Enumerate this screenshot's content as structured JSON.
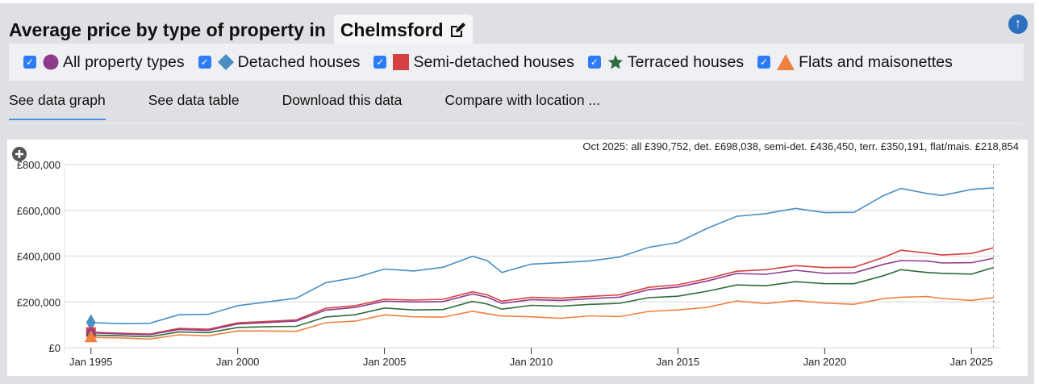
{
  "header": {
    "title": "Average price by type of property in",
    "location": "Chelmsford",
    "edit_icon": "edit-icon",
    "scroll_top_icon": "arrow-up-icon"
  },
  "legend": [
    {
      "label": "All property types",
      "marker": "circle",
      "color": "#8e3b8e"
    },
    {
      "label": "Detached houses",
      "marker": "diamond",
      "color": "#4a8fc4"
    },
    {
      "label": "Semi-detached houses",
      "marker": "square",
      "color": "#d64040"
    },
    {
      "label": "Terraced houses",
      "marker": "star",
      "color": "#2e6b3a"
    },
    {
      "label": "Flats and maisonettes",
      "marker": "triangle",
      "color": "#ef8040"
    }
  ],
  "tabs": [
    "See data graph",
    "See data table",
    "Download this data",
    "Compare with location ..."
  ],
  "chart_data": {
    "type": "line",
    "title": "",
    "annotation": "Oct 2025: all £390,752, det. £698,038, semi-det. £436,450, terr. £350,191, flat/mais. £218,854",
    "xlabel": "",
    "ylabel": "",
    "xlim": [
      1994.1,
      2025.9
    ],
    "ylim": [
      0,
      800000
    ],
    "xticks": [
      {
        "v": 1995,
        "label": "Jan 1995"
      },
      {
        "v": 2000,
        "label": "Jan 2000"
      },
      {
        "v": 2005,
        "label": "Jan 2005"
      },
      {
        "v": 2010,
        "label": "Jan 2010"
      },
      {
        "v": 2015,
        "label": "Jan 2015"
      },
      {
        "v": 2020,
        "label": "Jan 2020"
      },
      {
        "v": 2025,
        "label": "Jan 2025"
      }
    ],
    "yticks": [
      {
        "v": 0,
        "label": "£0"
      },
      {
        "v": 200000,
        "label": "£200,000"
      },
      {
        "v": 400000,
        "label": "£400,000"
      },
      {
        "v": 600000,
        "label": "£600,000"
      },
      {
        "v": 800000,
        "label": "£800,000"
      }
    ],
    "x": [
      1995,
      1996,
      1997,
      1998,
      1999,
      2000,
      2001,
      2002,
      2003,
      2004,
      2005,
      2006,
      2007,
      2008,
      2008.5,
      2009,
      2010,
      2011,
      2012,
      2013,
      2014,
      2015,
      2016,
      2017,
      2018,
      2019,
      2020,
      2021,
      2022,
      2022.6,
      2023.5,
      2024,
      2025,
      2025.75
    ],
    "series": [
      {
        "name": "Detached houses",
        "color": "#4a8fc4",
        "values": [
          110000,
          105000,
          115000,
          140000,
          150000,
          175000,
          200000,
          225000,
          280000,
          310000,
          335000,
          335000,
          360000,
          395000,
          385000,
          320000,
          365000,
          380000,
          375000,
          400000,
          430000,
          460000,
          530000,
          570000,
          590000,
          600000,
          590000,
          600000,
          660000,
          700000,
          665000,
          665000,
          700000,
          698038
        ]
      },
      {
        "name": "Semi-detached houses",
        "color": "#d64040",
        "values": [
          68000,
          63000,
          68000,
          80000,
          85000,
          100000,
          115000,
          130000,
          168000,
          188000,
          203000,
          208000,
          220000,
          240000,
          235000,
          195000,
          220000,
          225000,
          220000,
          235000,
          255000,
          275000,
          310000,
          330000,
          345000,
          350000,
          350000,
          360000,
          390000,
          430000,
          405000,
          405000,
          420000,
          436450
        ]
      },
      {
        "name": "All property types",
        "color": "#8e3b8e",
        "values": [
          65000,
          60000,
          65000,
          75000,
          80000,
          95000,
          110000,
          125000,
          160000,
          180000,
          195000,
          200000,
          210000,
          230000,
          225000,
          185000,
          210000,
          215000,
          210000,
          225000,
          245000,
          265000,
          300000,
          320000,
          325000,
          330000,
          325000,
          335000,
          360000,
          385000,
          370000,
          370000,
          380000,
          390752
        ]
      },
      {
        "name": "Terraced houses",
        "color": "#2e6b3a",
        "values": [
          55000,
          52000,
          56000,
          65000,
          70000,
          80000,
          92000,
          102000,
          130000,
          148000,
          165000,
          165000,
          175000,
          198000,
          195000,
          160000,
          185000,
          190000,
          185000,
          198000,
          210000,
          225000,
          255000,
          270000,
          275000,
          280000,
          280000,
          288000,
          310000,
          345000,
          320000,
          325000,
          330000,
          350191
        ]
      },
      {
        "name": "Flats and maisonettes",
        "color": "#ef8040",
        "values": [
          45000,
          43000,
          46000,
          52000,
          56000,
          65000,
          73000,
          80000,
          105000,
          120000,
          135000,
          135000,
          142000,
          155000,
          153000,
          130000,
          135000,
          137000,
          135000,
          140000,
          150000,
          165000,
          185000,
          200000,
          197000,
          198000,
          195000,
          198000,
          210000,
          225000,
          215000,
          215000,
          215000,
          218854
        ]
      }
    ]
  }
}
